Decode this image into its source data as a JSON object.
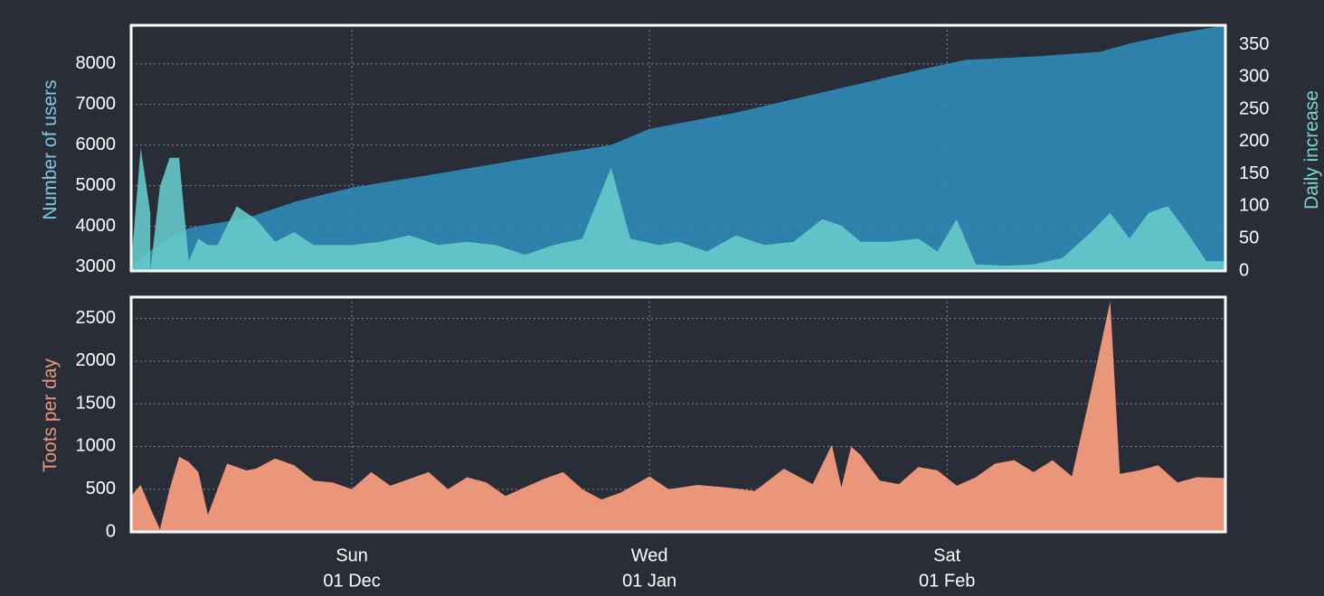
{
  "colors": {
    "background": "#282d38",
    "users_fill": "#2e86b0",
    "daily_fill": "#66cccc",
    "toots_fill": "#e9967a",
    "users_label": "#7ec8e3",
    "daily_label": "#7dd3cc",
    "toots_label": "#e9967a"
  },
  "x_ticks": [
    {
      "date": "2019-12-01",
      "top": "Sun",
      "bottom": "01 Dec"
    },
    {
      "date": "2020-01-01",
      "top": "Wed",
      "bottom": "01 Jan"
    },
    {
      "date": "2020-02-01",
      "top": "Sat",
      "bottom": "01 Feb"
    }
  ],
  "chart_data": [
    {
      "type": "area",
      "panel": "top",
      "x_range": [
        "2019-11-08",
        "2020-03-01"
      ],
      "grid": true,
      "left_axis": {
        "label": "Number of users",
        "ylim": [
          2900,
          8950
        ],
        "ticks": [
          3000,
          4000,
          5000,
          6000,
          7000,
          8000
        ]
      },
      "right_axis": {
        "label": "Daily increase",
        "ylim": [
          0,
          380
        ],
        "ticks": [
          0,
          50,
          100,
          150,
          200,
          250,
          300,
          350
        ]
      },
      "series": [
        {
          "name": "Number of users",
          "axis": "left",
          "x": [
            "2019-11-08",
            "2019-11-09",
            "2019-11-10",
            "2019-11-11",
            "2019-11-12",
            "2019-11-13",
            "2019-11-14",
            "2019-11-15",
            "2019-11-20",
            "2019-11-25",
            "2019-12-01",
            "2019-12-10",
            "2019-12-20",
            "2019-12-28",
            "2019-12-30",
            "2020-01-01",
            "2020-01-10",
            "2020-01-20",
            "2020-01-30",
            "2020-02-03",
            "2020-02-10",
            "2020-02-17",
            "2020-02-20",
            "2020-02-25",
            "2020-03-01"
          ],
          "values": [
            3000,
            3200,
            3400,
            3550,
            3700,
            3850,
            3950,
            4000,
            4200,
            4600,
            4950,
            5300,
            5700,
            6000,
            6200,
            6400,
            6800,
            7350,
            7900,
            8100,
            8180,
            8300,
            8500,
            8750,
            8950
          ]
        },
        {
          "name": "Daily increase",
          "axis": "right",
          "x": [
            "2019-11-08",
            "2019-11-09",
            "2019-11-10",
            "2019-11-10",
            "2019-11-11",
            "2019-11-12",
            "2019-11-13",
            "2019-11-14",
            "2019-11-15",
            "2019-11-16",
            "2019-11-17",
            "2019-11-19",
            "2019-11-21",
            "2019-11-23",
            "2019-11-25",
            "2019-11-27",
            "2019-11-29",
            "2019-12-01",
            "2019-12-04",
            "2019-12-07",
            "2019-12-10",
            "2019-12-13",
            "2019-12-16",
            "2019-12-19",
            "2019-12-22",
            "2019-12-25",
            "2019-12-28",
            "2019-12-30",
            "2020-01-02",
            "2020-01-04",
            "2020-01-07",
            "2020-01-10",
            "2020-01-13",
            "2020-01-16",
            "2020-01-19",
            "2020-01-21",
            "2020-01-23",
            "2020-01-26",
            "2020-01-29",
            "2020-01-31",
            "2020-02-02",
            "2020-02-04",
            "2020-02-07",
            "2020-02-10",
            "2020-02-13",
            "2020-02-16",
            "2020-02-18",
            "2020-02-20",
            "2020-02-22",
            "2020-02-24",
            "2020-02-26",
            "2020-02-28",
            "2020-03-01"
          ],
          "values": [
            10,
            190,
            90,
            0,
            130,
            175,
            175,
            15,
            50,
            40,
            40,
            100,
            80,
            45,
            60,
            40,
            40,
            40,
            45,
            55,
            40,
            45,
            40,
            25,
            40,
            50,
            160,
            50,
            40,
            45,
            30,
            55,
            40,
            45,
            80,
            70,
            45,
            45,
            50,
            30,
            80,
            10,
            8,
            10,
            20,
            60,
            90,
            50,
            90,
            100,
            60,
            15,
            15
          ]
        }
      ]
    },
    {
      "type": "area",
      "panel": "bottom",
      "x_range": [
        "2019-11-08",
        "2020-03-01"
      ],
      "grid": true,
      "left_axis": {
        "label": "Toots per day",
        "ylim": [
          0,
          2750
        ],
        "ticks": [
          0,
          500,
          1000,
          1500,
          2000,
          2500
        ]
      },
      "series": [
        {
          "name": "Toots per day",
          "x": [
            "2019-11-08",
            "2019-11-09",
            "2019-11-10",
            "2019-11-11",
            "2019-11-12",
            "2019-11-13",
            "2019-11-14",
            "2019-11-15",
            "2019-11-16",
            "2019-11-18",
            "2019-11-20",
            "2019-11-21",
            "2019-11-23",
            "2019-11-25",
            "2019-11-27",
            "2019-11-29",
            "2019-12-01",
            "2019-12-03",
            "2019-12-05",
            "2019-12-07",
            "2019-12-09",
            "2019-12-11",
            "2019-12-13",
            "2019-12-15",
            "2019-12-17",
            "2019-12-19",
            "2019-12-21",
            "2019-12-23",
            "2019-12-25",
            "2019-12-27",
            "2019-12-29",
            "2020-01-01",
            "2020-01-03",
            "2020-01-06",
            "2020-01-09",
            "2020-01-12",
            "2020-01-15",
            "2020-01-18",
            "2020-01-20",
            "2020-01-21",
            "2020-01-22",
            "2020-01-23",
            "2020-01-25",
            "2020-01-27",
            "2020-01-29",
            "2020-01-31",
            "2020-02-02",
            "2020-02-04",
            "2020-02-06",
            "2020-02-08",
            "2020-02-10",
            "2020-02-12",
            "2020-02-14",
            "2020-02-16",
            "2020-02-18",
            "2020-02-19",
            "2020-02-21",
            "2020-02-23",
            "2020-02-25",
            "2020-02-27",
            "2020-03-01"
          ],
          "values": [
            420,
            550,
            280,
            30,
            500,
            880,
            820,
            700,
            200,
            800,
            720,
            740,
            860,
            780,
            600,
            580,
            500,
            700,
            540,
            620,
            700,
            500,
            640,
            580,
            420,
            520,
            620,
            700,
            500,
            380,
            460,
            650,
            500,
            550,
            520,
            480,
            740,
            560,
            1020,
            520,
            1000,
            900,
            600,
            560,
            760,
            720,
            540,
            640,
            800,
            840,
            700,
            840,
            650,
            1650,
            2700,
            680,
            720,
            780,
            580,
            640,
            630
          ]
        }
      ]
    }
  ]
}
